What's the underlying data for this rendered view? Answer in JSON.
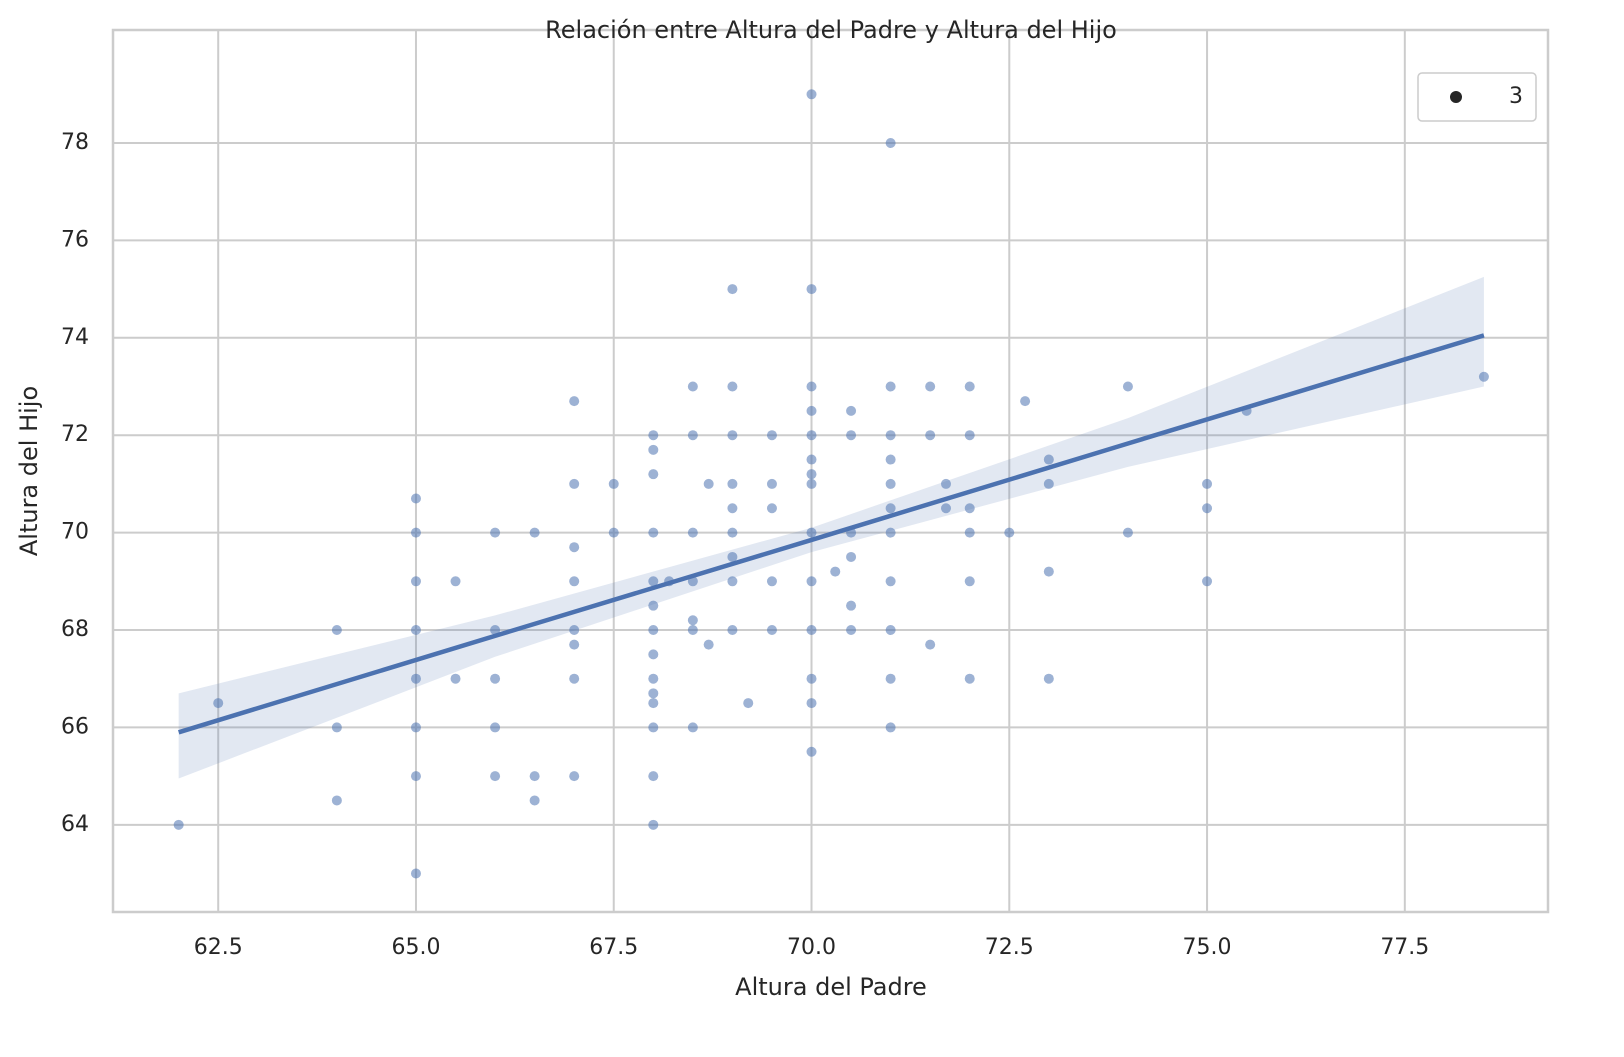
{
  "chart_data": {
    "type": "scatter",
    "title": "Relación entre Altura del Padre y Altura del Hijo",
    "x_label": "Altura del Padre",
    "y_label": "Altura del Hijo",
    "xlim": [
      61.17,
      79.31
    ],
    "ylim": [
      62.21,
      80.32
    ],
    "xticks": [
      62.5,
      {
        "value": 65,
        "label": "65.0"
      },
      67.5,
      {
        "value": 70,
        "label": "70.0"
      },
      72.5,
      {
        "value": 75,
        "label": "75.0"
      },
      77.5
    ],
    "yticks": [
      64,
      66,
      68,
      70,
      72,
      74,
      76,
      78
    ],
    "grid": true,
    "legend": "upper right",
    "series": [
      {
        "name": "3",
        "color": "#4c72b0",
        "x": [
          62,
          62.5,
          64,
          64,
          64,
          65,
          65,
          65,
          65,
          65,
          65,
          65,
          65,
          65.5,
          65.5,
          66,
          66,
          66,
          66,
          66,
          66.5,
          66.5,
          66.5,
          67,
          67,
          67,
          67,
          67,
          67,
          67,
          67,
          67.5,
          67.5,
          68,
          68,
          68,
          68,
          68,
          68,
          68,
          68,
          68,
          68,
          68,
          68,
          68,
          68,
          68.2,
          68.5,
          68.5,
          68.5,
          68.5,
          68.5,
          68.5,
          68.5,
          68.7,
          68.7,
          69,
          69,
          69,
          69,
          69,
          69,
          69,
          69,
          69,
          69.2,
          69.5,
          69.5,
          69.5,
          69.5,
          69.5,
          70,
          70,
          70,
          70,
          70,
          70,
          70,
          70,
          70,
          70,
          70,
          70,
          70,
          70,
          70.3,
          70.5,
          70.5,
          70.5,
          70.5,
          70.5,
          70.5,
          71,
          71,
          71,
          71,
          71,
          71,
          71,
          71,
          71,
          71,
          71,
          71.5,
          71.5,
          71.5,
          71.7,
          71.7,
          72,
          72,
          72,
          72,
          72,
          72,
          72.5,
          72.7,
          73,
          73,
          73,
          73,
          74,
          74,
          75,
          75,
          75,
          75.5,
          78.5
        ],
        "values": [
          64,
          66.5,
          68,
          66,
          64.5,
          70.7,
          70,
          69,
          68,
          67,
          66,
          65,
          63,
          69,
          67,
          70,
          68,
          67,
          66,
          65,
          70,
          65,
          64.5,
          72.7,
          71,
          69.7,
          69,
          68,
          67.7,
          67,
          65,
          71,
          70,
          72,
          71.7,
          71.2,
          70,
          69,
          68.5,
          68,
          67.5,
          67,
          66.7,
          66.5,
          66,
          65,
          64,
          69,
          73,
          72,
          70,
          69,
          68.2,
          68,
          66,
          71,
          67.7,
          75,
          73,
          72,
          71,
          70.5,
          70,
          69.5,
          69,
          68,
          66.5,
          72,
          71,
          70.5,
          69,
          68,
          79,
          75,
          73,
          72.5,
          72,
          71.5,
          71.2,
          71,
          70,
          69,
          68,
          67,
          66.5,
          65.5,
          69.2,
          72.5,
          72,
          70,
          69.5,
          68.5,
          68,
          78,
          73,
          72,
          71.5,
          71,
          70.5,
          70,
          69,
          68,
          67,
          66,
          73,
          72,
          67.7,
          71,
          70.5,
          73,
          72,
          70.5,
          70,
          69,
          67,
          70,
          72.7,
          71.5,
          71,
          69.2,
          67,
          73,
          70,
          71,
          70.5,
          69,
          72.5,
          73.2
        ]
      }
    ],
    "regression": {
      "color": "#4c72b0",
      "x": [
        62,
        66,
        70,
        74,
        78.5
      ],
      "y": [
        65.9,
        67.88,
        69.85,
        71.83,
        74.05
      ],
      "ci_lower": [
        64.95,
        67.45,
        69.6,
        71.35,
        73.0
      ],
      "ci_upper": [
        66.7,
        68.3,
        70.1,
        72.35,
        75.25
      ]
    }
  }
}
